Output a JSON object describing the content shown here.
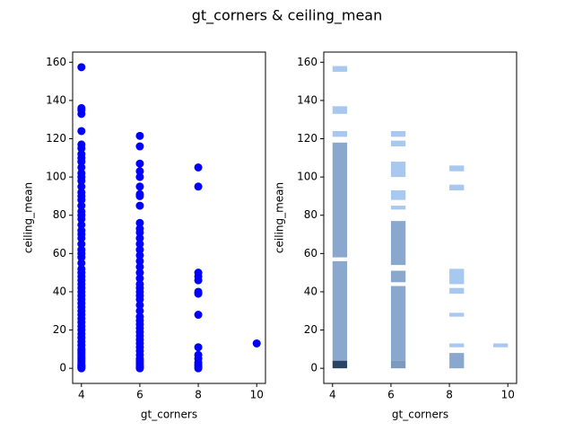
{
  "title": "gt_corners & ceiling_mean",
  "chart_data": [
    {
      "type": "scatter",
      "xlabel": "gt_corners",
      "ylabel": "ceiling_mean",
      "color": "#0000ff",
      "xlim": [
        3.7,
        10.3
      ],
      "ylim": [
        -7.9,
        165.3
      ],
      "xticks": [
        4,
        6,
        8,
        10
      ],
      "yticks": [
        0,
        20,
        40,
        60,
        80,
        100,
        120,
        140,
        160
      ],
      "x": [
        4,
        4,
        4,
        4,
        4,
        4,
        4,
        4,
        4,
        4,
        4,
        4,
        4,
        4,
        4,
        4,
        4,
        4,
        4,
        4,
        4,
        4,
        4,
        4,
        4,
        4,
        4,
        4,
        4,
        4,
        4,
        4,
        4,
        4,
        4,
        4,
        4,
        4,
        4,
        4,
        4,
        4,
        4,
        4,
        4,
        4,
        4,
        4,
        4,
        4,
        4,
        4,
        4,
        4,
        4,
        4,
        4,
        4,
        4,
        4,
        4,
        4,
        4,
        4,
        4,
        6,
        6,
        6,
        6,
        6,
        6,
        6,
        6,
        6,
        6,
        6,
        6,
        6,
        6,
        6,
        6,
        6,
        6,
        6,
        6,
        6,
        6,
        6,
        6,
        6,
        6,
        6,
        6,
        6,
        6,
        6,
        6,
        6,
        6,
        6,
        6,
        6,
        6,
        6,
        6,
        6,
        6,
        6,
        6,
        6,
        8,
        8,
        8,
        8,
        8,
        8,
        8,
        8,
        8,
        8,
        8,
        8,
        8,
        8,
        8,
        10
      ],
      "values": [
        0,
        0.5,
        1,
        1.5,
        2,
        3,
        4,
        5,
        6,
        7,
        8,
        9,
        10,
        12,
        14,
        16,
        18,
        20,
        22,
        24,
        26,
        28,
        30,
        32,
        34,
        36,
        38,
        40,
        42,
        44,
        46,
        48,
        50,
        52,
        55,
        58,
        60,
        62,
        65,
        68,
        70,
        72,
        75,
        78,
        80,
        82,
        85,
        88,
        90,
        92,
        95,
        98,
        100,
        102,
        105,
        108,
        110,
        112,
        115,
        117,
        124,
        133,
        135,
        136,
        157.4,
        0,
        0.5,
        1,
        2,
        3,
        4,
        5,
        7,
        9,
        11,
        13,
        15,
        17,
        19,
        21,
        23,
        25,
        27,
        30,
        33,
        36,
        38,
        40,
        42,
        44,
        47,
        50,
        53,
        56,
        59,
        62,
        65,
        68,
        71,
        73,
        76,
        85,
        90,
        91,
        95,
        100,
        103,
        107,
        116,
        121.5,
        0,
        1,
        2,
        3,
        5,
        7,
        11,
        28,
        39,
        40,
        46,
        48,
        50,
        95,
        105,
        13
      ]
    },
    {
      "type": "hist2d",
      "xlabel": "gt_corners",
      "ylabel": "ceiling_mean",
      "colors": [
        "#a8c8f0",
        "#2c4463"
      ],
      "xlim": [
        3.7,
        10.3
      ],
      "ylim": [
        -7.9,
        165.3
      ],
      "xticks": [
        4,
        6,
        8,
        10
      ],
      "yticks": [
        0,
        20,
        40,
        60,
        80,
        100,
        120,
        140,
        160
      ],
      "cells": [
        {
          "x": [
            4,
            4.5
          ],
          "y": [
            0,
            4
          ],
          "count": 60
        },
        {
          "x": [
            4,
            4.5
          ],
          "y": [
            4,
            56
          ],
          "count": 2
        },
        {
          "x": [
            4,
            4.5
          ],
          "y": [
            58,
            118
          ],
          "count": 2
        },
        {
          "x": [
            4,
            4.5
          ],
          "y": [
            121,
            124
          ],
          "count": 1
        },
        {
          "x": [
            4,
            4.5
          ],
          "y": [
            133,
            137
          ],
          "count": 1
        },
        {
          "x": [
            4,
            4.5
          ],
          "y": [
            155,
            158
          ],
          "count": 1
        },
        {
          "x": [
            6,
            6.5
          ],
          "y": [
            0,
            4
          ],
          "count": 4
        },
        {
          "x": [
            6,
            6.5
          ],
          "y": [
            4,
            43
          ],
          "count": 2
        },
        {
          "x": [
            6,
            6.5
          ],
          "y": [
            45,
            51
          ],
          "count": 2
        },
        {
          "x": [
            6,
            6.5
          ],
          "y": [
            54,
            77
          ],
          "count": 2
        },
        {
          "x": [
            6,
            6.5
          ],
          "y": [
            83,
            85
          ],
          "count": 1
        },
        {
          "x": [
            6,
            6.5
          ],
          "y": [
            88,
            93
          ],
          "count": 1
        },
        {
          "x": [
            6,
            6.5
          ],
          "y": [
            100,
            108
          ],
          "count": 1
        },
        {
          "x": [
            6,
            6.5
          ],
          "y": [
            116,
            119
          ],
          "count": 1
        },
        {
          "x": [
            6,
            6.5
          ],
          "y": [
            121,
            124
          ],
          "count": 1
        },
        {
          "x": [
            8,
            8.5
          ],
          "y": [
            0,
            8
          ],
          "count": 2
        },
        {
          "x": [
            8,
            8.5
          ],
          "y": [
            11,
            13
          ],
          "count": 1
        },
        {
          "x": [
            8,
            8.5
          ],
          "y": [
            27,
            29
          ],
          "count": 1
        },
        {
          "x": [
            8,
            8.5
          ],
          "y": [
            39,
            42
          ],
          "count": 1
        },
        {
          "x": [
            8,
            8.5
          ],
          "y": [
            44,
            52
          ],
          "count": 1
        },
        {
          "x": [
            8,
            8.5
          ],
          "y": [
            93,
            96
          ],
          "count": 1
        },
        {
          "x": [
            8,
            8.5
          ],
          "y": [
            103,
            106
          ],
          "count": 1
        },
        {
          "x": [
            9.5,
            10
          ],
          "y": [
            11,
            13
          ],
          "count": 1
        }
      ]
    }
  ]
}
